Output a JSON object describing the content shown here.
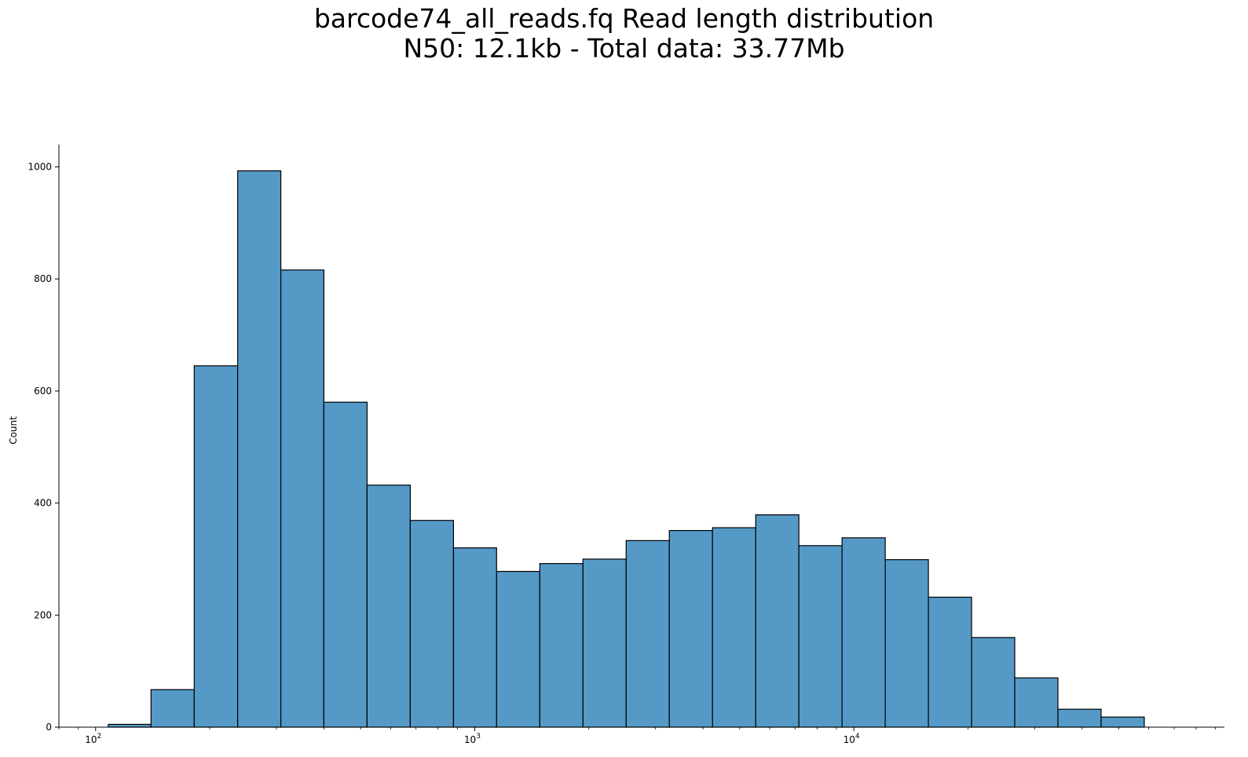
{
  "chart_data": {
    "type": "bar",
    "title": "barcode74_all_reads.fq Read length distribution",
    "subtitle": "N50: 12.1kb - Total data: 33.77Mb",
    "xlabel": "",
    "ylabel": "Count",
    "x_scale": "log",
    "xlim": [
      80,
      95000
    ],
    "ylim": [
      0,
      1040
    ],
    "grid": false,
    "bar_color": "#5599c7",
    "edge_color": "#000000",
    "bin_edges": [
      108,
      140,
      182,
      237,
      308,
      400,
      520,
      676,
      879,
      1142,
      1485,
      1930,
      2509,
      3261,
      4239,
      5511,
      7163,
      9311,
      12103,
      15732,
      20450,
      26582,
      34553,
      44914,
      58382
    ],
    "values": [
      5,
      67,
      645,
      993,
      816,
      580,
      432,
      369,
      320,
      278,
      292,
      300,
      333,
      351,
      356,
      379,
      324,
      338,
      299,
      232,
      160,
      88,
      32,
      18
    ],
    "y_ticks": [
      0,
      200,
      400,
      600,
      800,
      1000
    ],
    "x_ticks": [
      {
        "value": 100,
        "label": "10",
        "exp": "2"
      },
      {
        "value": 1000,
        "label": "10",
        "exp": "3"
      },
      {
        "value": 10000,
        "label": "10",
        "exp": "4"
      }
    ]
  }
}
